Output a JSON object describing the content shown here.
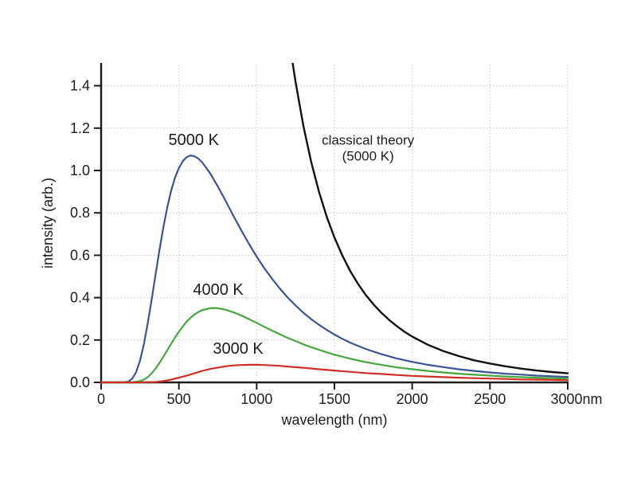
{
  "page": {
    "background": "#ffffff"
  },
  "chart_data": {
    "type": "line",
    "title": "",
    "xlabel": "wavelength (nm)",
    "ylabel": "intensity (arb.)",
    "xlim": [
      0,
      3000
    ],
    "ylim": [
      0,
      1.5
    ],
    "grid": "dotted",
    "grid_color": "#c9c9c9",
    "axis_color": "#1d1d1d",
    "text_color": "#1d1d1d",
    "legend": "none (inline curve labels)",
    "x_ticks": [
      {
        "value": 0,
        "label": "0"
      },
      {
        "value": 500,
        "label": "500"
      },
      {
        "value": 1000,
        "label": "1000"
      },
      {
        "value": 1500,
        "label": "1500"
      },
      {
        "value": 2000,
        "label": "2000"
      },
      {
        "value": 2500,
        "label": "2500"
      },
      {
        "value": 3000,
        "label": "3000nm",
        "dx": 11
      }
    ],
    "y_ticks": [
      {
        "value": 0.0,
        "label": "0.0"
      },
      {
        "value": 0.2,
        "label": "0.2"
      },
      {
        "value": 0.4,
        "label": "0.4"
      },
      {
        "value": 0.6,
        "label": "0.6"
      },
      {
        "value": 0.8,
        "label": "0.8"
      },
      {
        "value": 1.0,
        "label": "1.0"
      },
      {
        "value": 1.2,
        "label": "1.2"
      },
      {
        "value": 1.4,
        "label": "1.4"
      }
    ],
    "series": [
      {
        "id": "planck-5000k",
        "name": "5000 K",
        "color": "#3a5596",
        "peak": {
          "wavelength_nm": 580,
          "intensity": 1.07
        },
        "points": [
          [
            0,
            0
          ],
          [
            50,
            0
          ],
          [
            100,
            0
          ],
          [
            150,
            0.001
          ],
          [
            175,
            0.004
          ],
          [
            200,
            0.018
          ],
          [
            225,
            0.048
          ],
          [
            250,
            0.102
          ],
          [
            275,
            0.18
          ],
          [
            300,
            0.28
          ],
          [
            325,
            0.391
          ],
          [
            350,
            0.51
          ],
          [
            375,
            0.625
          ],
          [
            400,
            0.731
          ],
          [
            425,
            0.824
          ],
          [
            450,
            0.904
          ],
          [
            475,
            0.966
          ],
          [
            500,
            1.012
          ],
          [
            525,
            1.044
          ],
          [
            550,
            1.063
          ],
          [
            575,
            1.071
          ],
          [
            600,
            1.067
          ],
          [
            625,
            1.056
          ],
          [
            650,
            1.038
          ],
          [
            700,
            0.988
          ],
          [
            750,
            0.925
          ],
          [
            800,
            0.857
          ],
          [
            850,
            0.787
          ],
          [
            900,
            0.719
          ],
          [
            950,
            0.654
          ],
          [
            1000,
            0.594
          ],
          [
            1050,
            0.538
          ],
          [
            1100,
            0.488
          ],
          [
            1150,
            0.442
          ],
          [
            1200,
            0.4
          ],
          [
            1250,
            0.363
          ],
          [
            1300,
            0.329
          ],
          [
            1350,
            0.299
          ],
          [
            1400,
            0.272
          ],
          [
            1450,
            0.248
          ],
          [
            1500,
            0.226
          ],
          [
            1550,
            0.206
          ],
          [
            1600,
            0.188
          ],
          [
            1700,
            0.158
          ],
          [
            1800,
            0.134
          ],
          [
            1900,
            0.113
          ],
          [
            2000,
            0.097
          ],
          [
            2100,
            0.083
          ],
          [
            2200,
            0.072
          ],
          [
            2300,
            0.062
          ],
          [
            2400,
            0.054
          ],
          [
            2500,
            0.047
          ],
          [
            2600,
            0.041
          ],
          [
            2700,
            0.037
          ],
          [
            2800,
            0.032
          ],
          [
            2900,
            0.029
          ],
          [
            3000,
            0.026
          ]
        ]
      },
      {
        "id": "planck-4000k",
        "name": "4000 K",
        "color": "#46a73f",
        "peak": {
          "wavelength_nm": 725,
          "intensity": 0.35
        },
        "points": [
          [
            0,
            0
          ],
          [
            100,
            0
          ],
          [
            150,
            0
          ],
          [
            200,
            0.001
          ],
          [
            250,
            0.006
          ],
          [
            275,
            0.013
          ],
          [
            300,
            0.025
          ],
          [
            325,
            0.043
          ],
          [
            350,
            0.065
          ],
          [
            375,
            0.092
          ],
          [
            400,
            0.121
          ],
          [
            425,
            0.151
          ],
          [
            450,
            0.182
          ],
          [
            475,
            0.212
          ],
          [
            500,
            0.239
          ],
          [
            525,
            0.264
          ],
          [
            550,
            0.287
          ],
          [
            575,
            0.305
          ],
          [
            600,
            0.32
          ],
          [
            625,
            0.332
          ],
          [
            650,
            0.341
          ],
          [
            675,
            0.346
          ],
          [
            700,
            0.35
          ],
          [
            725,
            0.351
          ],
          [
            750,
            0.35
          ],
          [
            775,
            0.347
          ],
          [
            800,
            0.343
          ],
          [
            850,
            0.331
          ],
          [
            900,
            0.316
          ],
          [
            950,
            0.299
          ],
          [
            1000,
            0.281
          ],
          [
            1050,
            0.262
          ],
          [
            1100,
            0.244
          ],
          [
            1150,
            0.227
          ],
          [
            1200,
            0.21
          ],
          [
            1250,
            0.195
          ],
          [
            1300,
            0.18
          ],
          [
            1350,
            0.166
          ],
          [
            1400,
            0.154
          ],
          [
            1450,
            0.142
          ],
          [
            1500,
            0.131
          ],
          [
            1600,
            0.112
          ],
          [
            1700,
            0.096
          ],
          [
            1800,
            0.083
          ],
          [
            1900,
            0.071
          ],
          [
            2000,
            0.062
          ],
          [
            2100,
            0.054
          ],
          [
            2200,
            0.047
          ],
          [
            2300,
            0.041
          ],
          [
            2400,
            0.036
          ],
          [
            2500,
            0.032
          ],
          [
            2600,
            0.028
          ],
          [
            2700,
            0.025
          ],
          [
            2800,
            0.022
          ],
          [
            2900,
            0.02
          ],
          [
            3000,
            0.018
          ]
        ]
      },
      {
        "id": "planck-3000k",
        "name": "3000 K",
        "color": "#cf2e24",
        "peak": {
          "wavelength_nm": 966,
          "intensity": 0.083
        },
        "points": [
          [
            0,
            0
          ],
          [
            150,
            0
          ],
          [
            250,
            0
          ],
          [
            300,
            0.001
          ],
          [
            350,
            0.002
          ],
          [
            400,
            0.006
          ],
          [
            450,
            0.013
          ],
          [
            500,
            0.022
          ],
          [
            550,
            0.032
          ],
          [
            600,
            0.043
          ],
          [
            650,
            0.054
          ],
          [
            700,
            0.063
          ],
          [
            750,
            0.07
          ],
          [
            800,
            0.076
          ],
          [
            850,
            0.08
          ],
          [
            900,
            0.082
          ],
          [
            950,
            0.083
          ],
          [
            1000,
            0.083
          ],
          [
            1050,
            0.082
          ],
          [
            1100,
            0.08
          ],
          [
            1150,
            0.078
          ],
          [
            1200,
            0.075
          ],
          [
            1300,
            0.069
          ],
          [
            1400,
            0.062
          ],
          [
            1500,
            0.056
          ],
          [
            1600,
            0.05
          ],
          [
            1700,
            0.044
          ],
          [
            1800,
            0.04
          ],
          [
            1900,
            0.035
          ],
          [
            2000,
            0.031
          ],
          [
            2100,
            0.028
          ],
          [
            2200,
            0.025
          ],
          [
            2300,
            0.022
          ],
          [
            2400,
            0.02
          ],
          [
            2500,
            0.018
          ],
          [
            2600,
            0.016
          ],
          [
            2700,
            0.014
          ],
          [
            2800,
            0.013
          ],
          [
            2900,
            0.012
          ],
          [
            3000,
            0.01
          ]
        ]
      },
      {
        "id": "classical-5000k",
        "name": "classical theory (5000 K)",
        "color": "#111111",
        "points": [
          [
            1100,
            2.364
          ],
          [
            1150,
            1.979
          ],
          [
            1200,
            1.669
          ],
          [
            1233,
            1.5
          ],
          [
            1250,
            1.418
          ],
          [
            1300,
            1.212
          ],
          [
            1350,
            1.042
          ],
          [
            1400,
            0.901
          ],
          [
            1450,
            0.783
          ],
          [
            1500,
            0.684
          ],
          [
            1550,
            0.6
          ],
          [
            1600,
            0.528
          ],
          [
            1650,
            0.467
          ],
          [
            1700,
            0.414
          ],
          [
            1750,
            0.369
          ],
          [
            1800,
            0.33
          ],
          [
            1850,
            0.296
          ],
          [
            1900,
            0.266
          ],
          [
            1950,
            0.239
          ],
          [
            2000,
            0.216
          ],
          [
            2100,
            0.178
          ],
          [
            2200,
            0.148
          ],
          [
            2300,
            0.124
          ],
          [
            2400,
            0.104
          ],
          [
            2500,
            0.089
          ],
          [
            2600,
            0.076
          ],
          [
            2700,
            0.065
          ],
          [
            2800,
            0.056
          ],
          [
            2900,
            0.049
          ],
          [
            3000,
            0.043
          ]
        ]
      }
    ],
    "annotations": [
      {
        "text": "5000 K",
        "x_nm": 595,
        "y_intensity": 1.142,
        "size": "normal"
      },
      {
        "text": "4000 K",
        "x_nm": 753,
        "y_intensity": 0.436,
        "size": "normal"
      },
      {
        "text": "3000 K",
        "x_nm": 881,
        "y_intensity": 0.158,
        "size": "normal"
      },
      {
        "text": "classical theory",
        "x_nm": 1716,
        "y_intensity": 1.143,
        "size": "small"
      },
      {
        "text": "(5000 K)",
        "x_nm": 1716,
        "y_intensity": 1.068,
        "size": "small"
      }
    ]
  }
}
